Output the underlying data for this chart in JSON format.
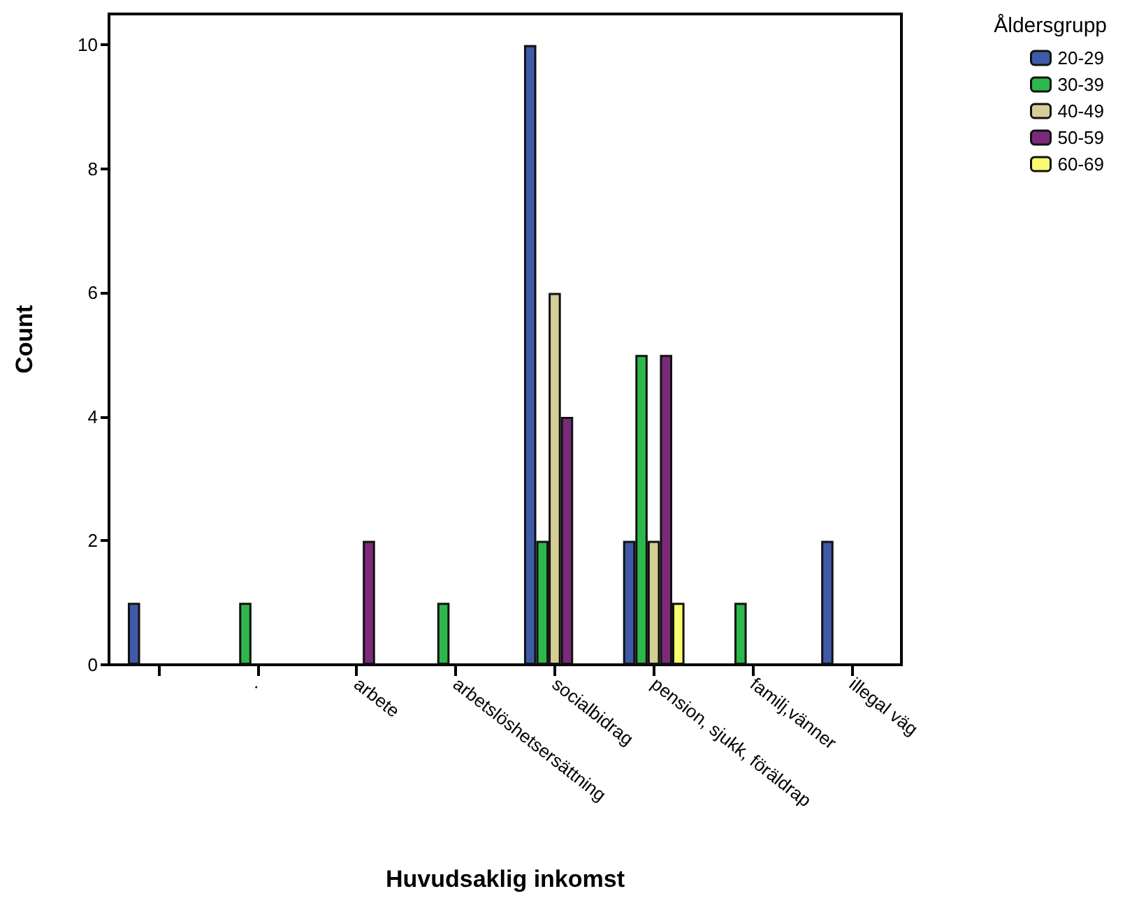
{
  "chart_data": {
    "type": "bar",
    "xlabel": "Huvudsaklig inkomst",
    "ylabel": "Count",
    "legend_title": "Åldersgrupp",
    "categories": [
      null,
      ".",
      "arbete",
      "arbetslöshetsersättning",
      "socialbidrag",
      "pension, sjukk, föräldrap",
      "familj,vänner",
      "illegal väg"
    ],
    "series": [
      {
        "name": "20-29",
        "color": "#3f5aa8",
        "values": [
          1,
          null,
          null,
          null,
          10,
          2,
          null,
          2
        ]
      },
      {
        "name": "30-39",
        "color": "#2db84b",
        "values": [
          null,
          1,
          null,
          1,
          2,
          5,
          1,
          null
        ]
      },
      {
        "name": "40-49",
        "color": "#d4cf96",
        "values": [
          null,
          null,
          null,
          null,
          6,
          2,
          null,
          null
        ]
      },
      {
        "name": "50-59",
        "color": "#7b2a7b",
        "values": [
          null,
          null,
          2,
          null,
          4,
          5,
          null,
          null
        ]
      },
      {
        "name": "60-69",
        "color": "#fafa6e",
        "values": [
          null,
          null,
          null,
          null,
          null,
          1,
          null,
          null
        ]
      }
    ],
    "ylim": [
      0,
      10.5
    ],
    "yticks": [
      0,
      2,
      4,
      6,
      8,
      10
    ],
    "grid": false,
    "legend": "top right"
  }
}
